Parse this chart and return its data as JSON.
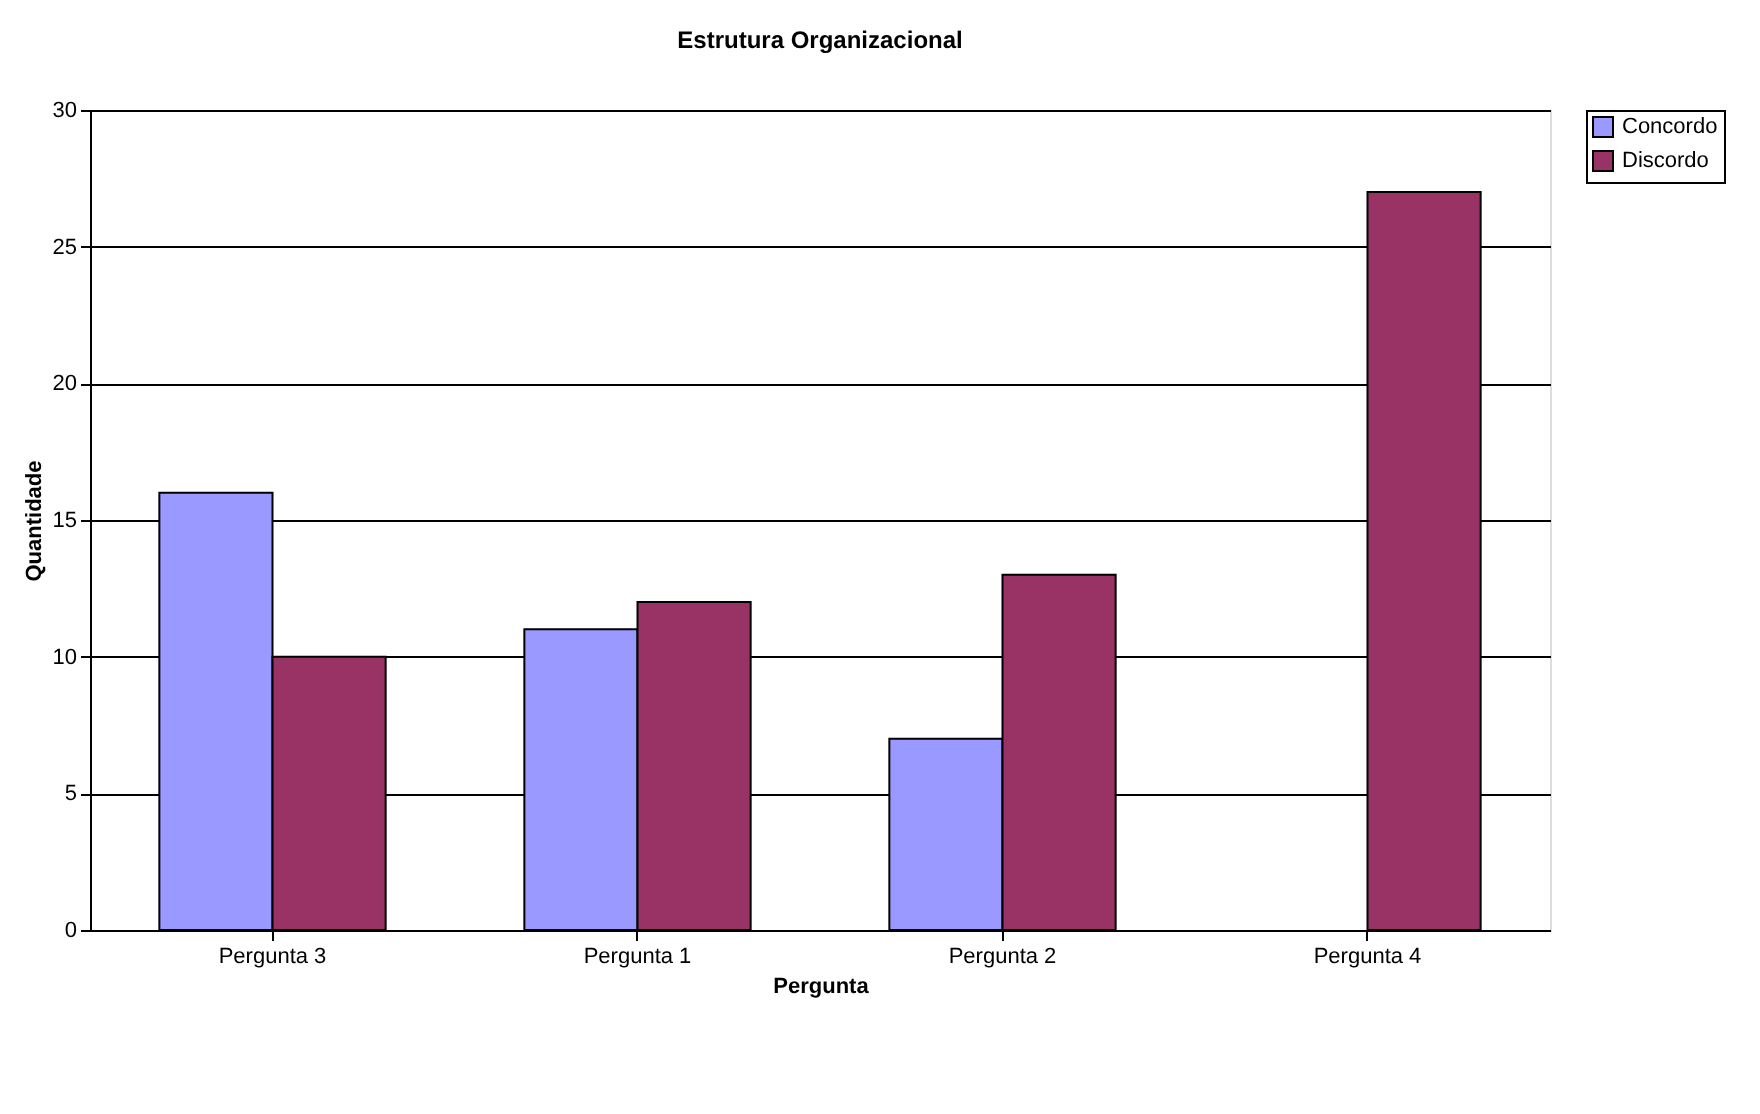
{
  "chart_data": {
    "type": "bar",
    "title": "Estrutura Organizacional",
    "xlabel": "Pergunta",
    "ylabel": "Quantidade",
    "categories": [
      "Pergunta 3",
      "Pergunta 1",
      "Pergunta 2",
      "Pergunta 4"
    ],
    "series": [
      {
        "name": "Concordo",
        "color": "#9999ff",
        "values": [
          16,
          11,
          7,
          null
        ]
      },
      {
        "name": "Discordo",
        "color": "#993366",
        "values": [
          10,
          12,
          13,
          27
        ]
      }
    ],
    "ylim": [
      0,
      30
    ],
    "yticks": [
      0,
      5,
      10,
      15,
      20,
      25,
      30
    ],
    "grid": "y",
    "legend": "right"
  }
}
